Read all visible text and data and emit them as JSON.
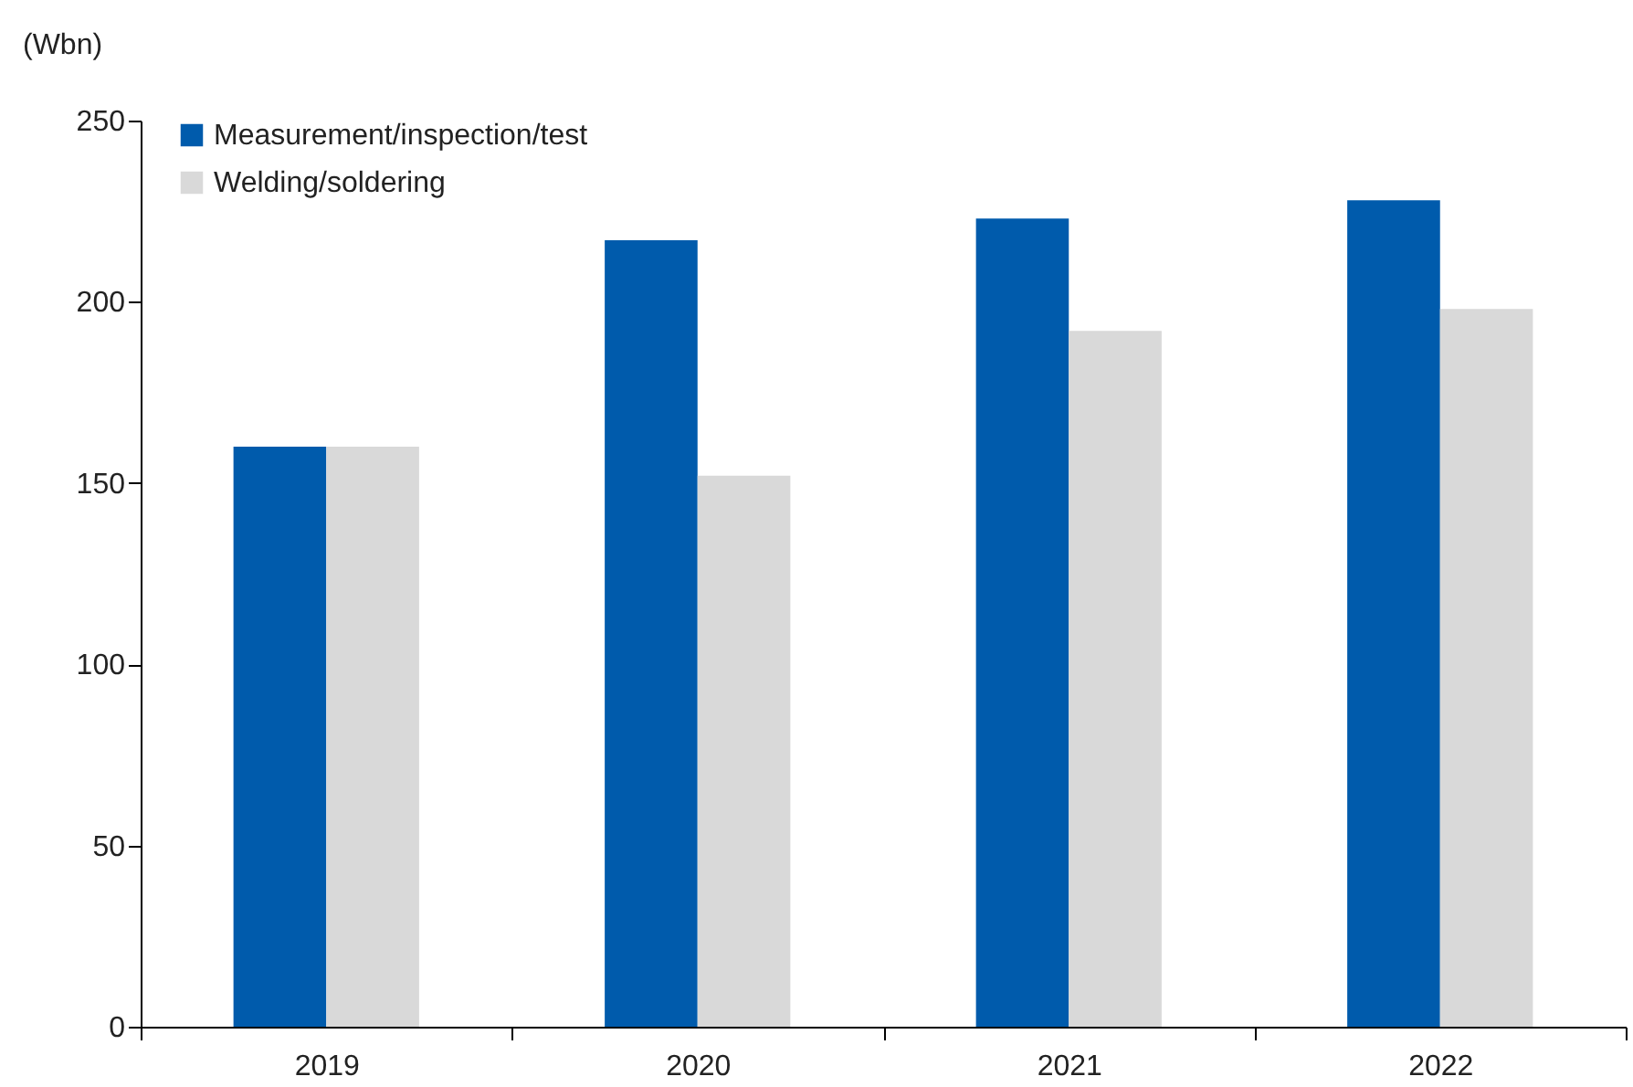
{
  "chart_data": {
    "type": "bar",
    "ylabel": "(Wbn)",
    "categories": [
      "2019",
      "2020",
      "2021",
      "2022"
    ],
    "series": [
      {
        "name": "Measurement/inspection/test",
        "color": "#005bac",
        "values": [
          160,
          217,
          223,
          228
        ]
      },
      {
        "name": "Welding/soldering",
        "color": "#d9d9d9",
        "values": [
          160,
          152,
          192,
          198
        ]
      }
    ],
    "ylim": [
      0,
      250
    ],
    "yticks": [
      0,
      50,
      100,
      150,
      200,
      250
    ],
    "legend": "top left"
  }
}
